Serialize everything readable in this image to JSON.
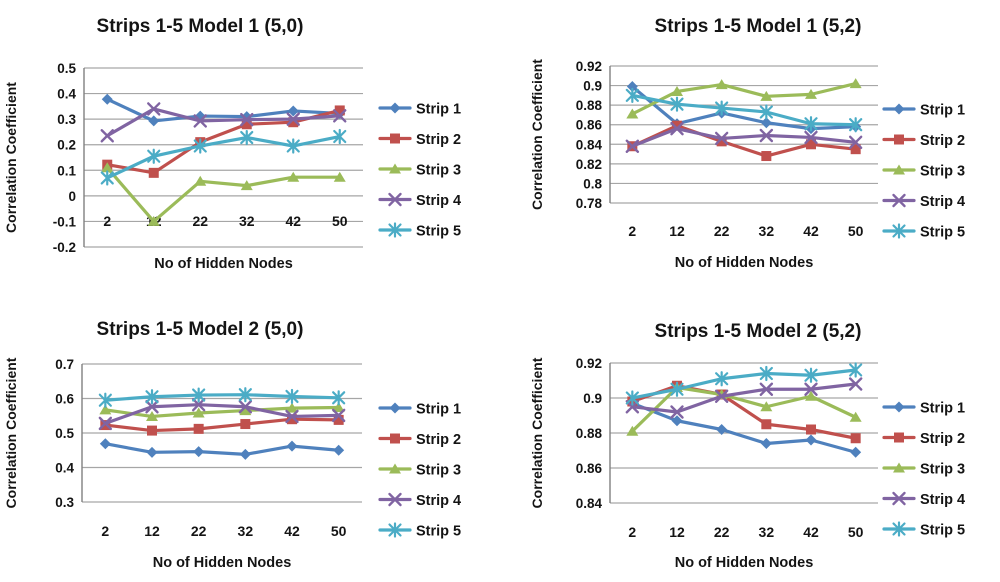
{
  "figure": {
    "background": "#ffffff",
    "grid_color": "#a6a6a6",
    "axis_color": "#808080"
  },
  "chart_data": [
    {
      "type": "line",
      "title": "Strips 1-5 Model 1 (5,0)",
      "xlabel": "No of Hidden Nodes",
      "ylabel": "Correlation Coefficient",
      "categories": [
        "2",
        "12",
        "22",
        "32",
        "42",
        "50"
      ],
      "ylim": [
        -0.2,
        0.5
      ],
      "ytick_labels": [
        "0.5",
        "0.4",
        "0.3",
        "0.2",
        "0.1",
        "0",
        "-0.1",
        "-0.2"
      ],
      "grid": true,
      "legend_position": "right",
      "series": [
        {
          "name": "Strip 1",
          "color": "#4F81BD",
          "marker": "diamond",
          "values": [
            0.378,
            0.293,
            0.312,
            0.31,
            0.332,
            0.322
          ]
        },
        {
          "name": "Strip 2",
          "color": "#C0504D",
          "marker": "square",
          "values": [
            0.122,
            0.09,
            0.21,
            0.28,
            0.288,
            0.334
          ]
        },
        {
          "name": "Strip 3",
          "color": "#9BBB59",
          "marker": "triangle",
          "values": [
            0.11,
            -0.1,
            0.057,
            0.04,
            0.073,
            0.073
          ]
        },
        {
          "name": "Strip 4",
          "color": "#8064A2",
          "marker": "x",
          "values": [
            0.235,
            0.34,
            0.293,
            0.298,
            0.3,
            0.313
          ]
        },
        {
          "name": "Strip 5",
          "color": "#4BACC6",
          "marker": "asterisk",
          "values": [
            0.07,
            0.155,
            0.195,
            0.228,
            0.195,
            0.232
          ]
        }
      ]
    },
    {
      "type": "line",
      "title": "Strips 1-5 Model 1 (5,2)",
      "xlabel": "No of Hidden Nodes",
      "ylabel": "Correlation Coefficient",
      "categories": [
        "2",
        "12",
        "22",
        "32",
        "42",
        "50"
      ],
      "ylim": [
        0.78,
        0.92
      ],
      "ytick_labels": [
        "0.92",
        "0.9",
        "0.88",
        "0.86",
        "0.84",
        "0.82",
        "0.8",
        "0.78"
      ],
      "grid": true,
      "legend_position": "right",
      "series": [
        {
          "name": "Strip 1",
          "color": "#4F81BD",
          "marker": "diamond",
          "values": [
            0.899,
            0.861,
            0.872,
            0.862,
            0.856,
            0.858
          ]
        },
        {
          "name": "Strip 2",
          "color": "#C0504D",
          "marker": "square",
          "values": [
            0.838,
            0.859,
            0.843,
            0.828,
            0.84,
            0.835
          ]
        },
        {
          "name": "Strip 3",
          "color": "#9BBB59",
          "marker": "triangle",
          "values": [
            0.871,
            0.894,
            0.901,
            0.889,
            0.891,
            0.902
          ]
        },
        {
          "name": "Strip 4",
          "color": "#8064A2",
          "marker": "x",
          "values": [
            0.838,
            0.856,
            0.846,
            0.849,
            0.847,
            0.842
          ]
        },
        {
          "name": "Strip 5",
          "color": "#4BACC6",
          "marker": "asterisk",
          "values": [
            0.89,
            0.881,
            0.877,
            0.873,
            0.861,
            0.86
          ]
        }
      ]
    },
    {
      "type": "line",
      "title": "Strips 1-5 Model 2 (5,0)",
      "xlabel": "No of Hidden Nodes",
      "ylabel": "Correlation Coefficient",
      "categories": [
        "2",
        "12",
        "22",
        "32",
        "42",
        "50"
      ],
      "ylim": [
        0.3,
        0.7
      ],
      "ytick_labels": [
        "0.7",
        "0.6",
        "0.5",
        "0.4",
        "0.3"
      ],
      "grid": true,
      "legend_position": "right",
      "series": [
        {
          "name": "Strip 1",
          "color": "#4F81BD",
          "marker": "diamond",
          "values": [
            0.469,
            0.444,
            0.446,
            0.438,
            0.462,
            0.45
          ]
        },
        {
          "name": "Strip 2",
          "color": "#C0504D",
          "marker": "square",
          "values": [
            0.523,
            0.507,
            0.512,
            0.526,
            0.54,
            0.538
          ]
        },
        {
          "name": "Strip 3",
          "color": "#9BBB59",
          "marker": "triangle",
          "values": [
            0.567,
            0.548,
            0.558,
            0.565,
            0.572,
            0.574
          ]
        },
        {
          "name": "Strip 4",
          "color": "#8064A2",
          "marker": "x",
          "values": [
            0.528,
            0.576,
            0.582,
            0.576,
            0.548,
            0.551
          ]
        },
        {
          "name": "Strip 5",
          "color": "#4BACC6",
          "marker": "asterisk",
          "values": [
            0.595,
            0.605,
            0.61,
            0.611,
            0.606,
            0.602
          ]
        }
      ]
    },
    {
      "type": "line",
      "title": "Strips 1-5 Model 2 (5,2)",
      "xlabel": "No of Hidden Nodes",
      "ylabel": "Correlation Coefficient",
      "categories": [
        "2",
        "12",
        "22",
        "32",
        "42",
        "50"
      ],
      "ylim": [
        0.84,
        0.92
      ],
      "ytick_labels": [
        "0.92",
        "0.9",
        "0.88",
        "0.86",
        "0.84"
      ],
      "grid": true,
      "legend_position": "right",
      "series": [
        {
          "name": "Strip 1",
          "color": "#4F81BD",
          "marker": "diamond",
          "values": [
            0.897,
            0.887,
            0.882,
            0.874,
            0.876,
            0.869
          ]
        },
        {
          "name": "Strip 2",
          "color": "#C0504D",
          "marker": "square",
          "values": [
            0.898,
            0.907,
            0.902,
            0.885,
            0.882,
            0.877
          ]
        },
        {
          "name": "Strip 3",
          "color": "#9BBB59",
          "marker": "triangle",
          "values": [
            0.881,
            0.906,
            0.902,
            0.895,
            0.901,
            0.889
          ]
        },
        {
          "name": "Strip 4",
          "color": "#8064A2",
          "marker": "x",
          "values": [
            0.895,
            0.892,
            0.901,
            0.905,
            0.905,
            0.908
          ]
        },
        {
          "name": "Strip 5",
          "color": "#4BACC6",
          "marker": "asterisk",
          "values": [
            0.9,
            0.905,
            0.911,
            0.914,
            0.913,
            0.916
          ]
        }
      ]
    }
  ]
}
